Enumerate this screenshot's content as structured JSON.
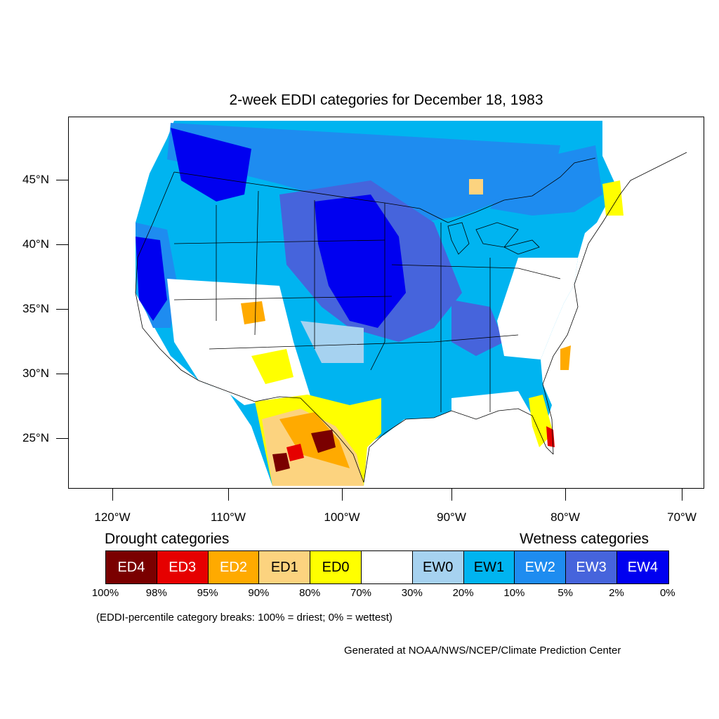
{
  "title": "2-week EDDI categories for December 18, 1983",
  "lat_labels": [
    "45°N",
    "40°N",
    "35°N",
    "30°N",
    "25°N"
  ],
  "lon_labels": [
    "120°W",
    "110°W",
    "100°W",
    "90°W",
    "80°W",
    "70°W"
  ],
  "drought_heading": "Drought categories",
  "wetness_heading": "Wetness categories",
  "legend": [
    {
      "label": "ED4",
      "color": "#7a0000",
      "text_color": "#ffffff"
    },
    {
      "label": "ED3",
      "color": "#e60000",
      "text_color": "#ffffff"
    },
    {
      "label": "ED2",
      "color": "#ffaa00",
      "text_color": "#ffffff"
    },
    {
      "label": "ED1",
      "color": "#fcd37f",
      "text_color": "#000000"
    },
    {
      "label": "ED0",
      "color": "#ffff00",
      "text_color": "#000000"
    },
    {
      "label": "",
      "color": "#ffffff",
      "text_color": "#000000"
    },
    {
      "label": "EW0",
      "color": "#a6d2f0",
      "text_color": "#000000"
    },
    {
      "label": "EW1",
      "color": "#00b4f0",
      "text_color": "#000000"
    },
    {
      "label": "EW2",
      "color": "#1e8cf0",
      "text_color": "#ffffff"
    },
    {
      "label": "EW3",
      "color": "#4664dc",
      "text_color": "#ffffff"
    },
    {
      "label": "EW4",
      "color": "#0000f0",
      "text_color": "#ffffff"
    }
  ],
  "percentiles": [
    "100%",
    "98%",
    "95%",
    "90%",
    "80%",
    "70%",
    "30%",
    "20%",
    "10%",
    "5%",
    "2%",
    "0%"
  ],
  "note": "(EDDI-percentile category breaks: 100% = driest; 0% = wettest)",
  "credit": "Generated at NOAA/NWS/NCEP/Climate Prediction Center"
}
